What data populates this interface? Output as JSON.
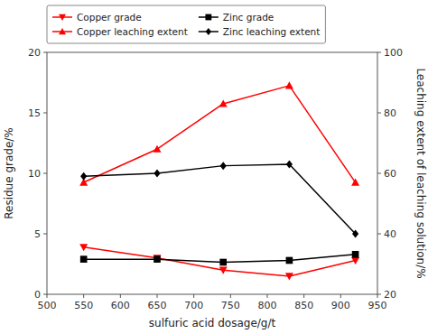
{
  "chart_data": {
    "type": "line",
    "x_label": "sulfuric acid dosage/g/t",
    "y_label": "Residue grade/%",
    "y2_label": "Leaching extent of leaching solution/%",
    "x": [
      550,
      650,
      740,
      830,
      920
    ],
    "xlim": [
      500,
      950
    ],
    "xticks": [
      500,
      550,
      600,
      650,
      700,
      750,
      800,
      850,
      900,
      950
    ],
    "ylim": [
      0,
      20
    ],
    "yticks": [
      0,
      5,
      10,
      15,
      20
    ],
    "y2lim": [
      20,
      100
    ],
    "y2ticks": [
      20,
      40,
      60,
      80,
      100
    ],
    "grid": false,
    "legend": "upper left",
    "series": [
      {
        "name": "Copper grade",
        "color": "#FF0000",
        "marker": "triangle-down",
        "values": [
          3.9,
          3.0,
          2.0,
          1.5,
          2.8
        ]
      },
      {
        "name": "Zinc grade",
        "color": "#000000",
        "marker": "square",
        "values": [
          2.9,
          2.9,
          2.65,
          2.8,
          3.3
        ]
      },
      {
        "name": "Copper leaching extent",
        "color": "#FF0000",
        "marker": "triangle-up",
        "axis": "y2",
        "values": [
          57,
          68,
          83,
          89,
          57
        ]
      },
      {
        "name": "Zinc leaching extent",
        "color": "#000000",
        "marker": "diamond",
        "axis": "y2",
        "values": [
          59,
          60,
          62.5,
          63,
          40
        ]
      }
    ]
  }
}
